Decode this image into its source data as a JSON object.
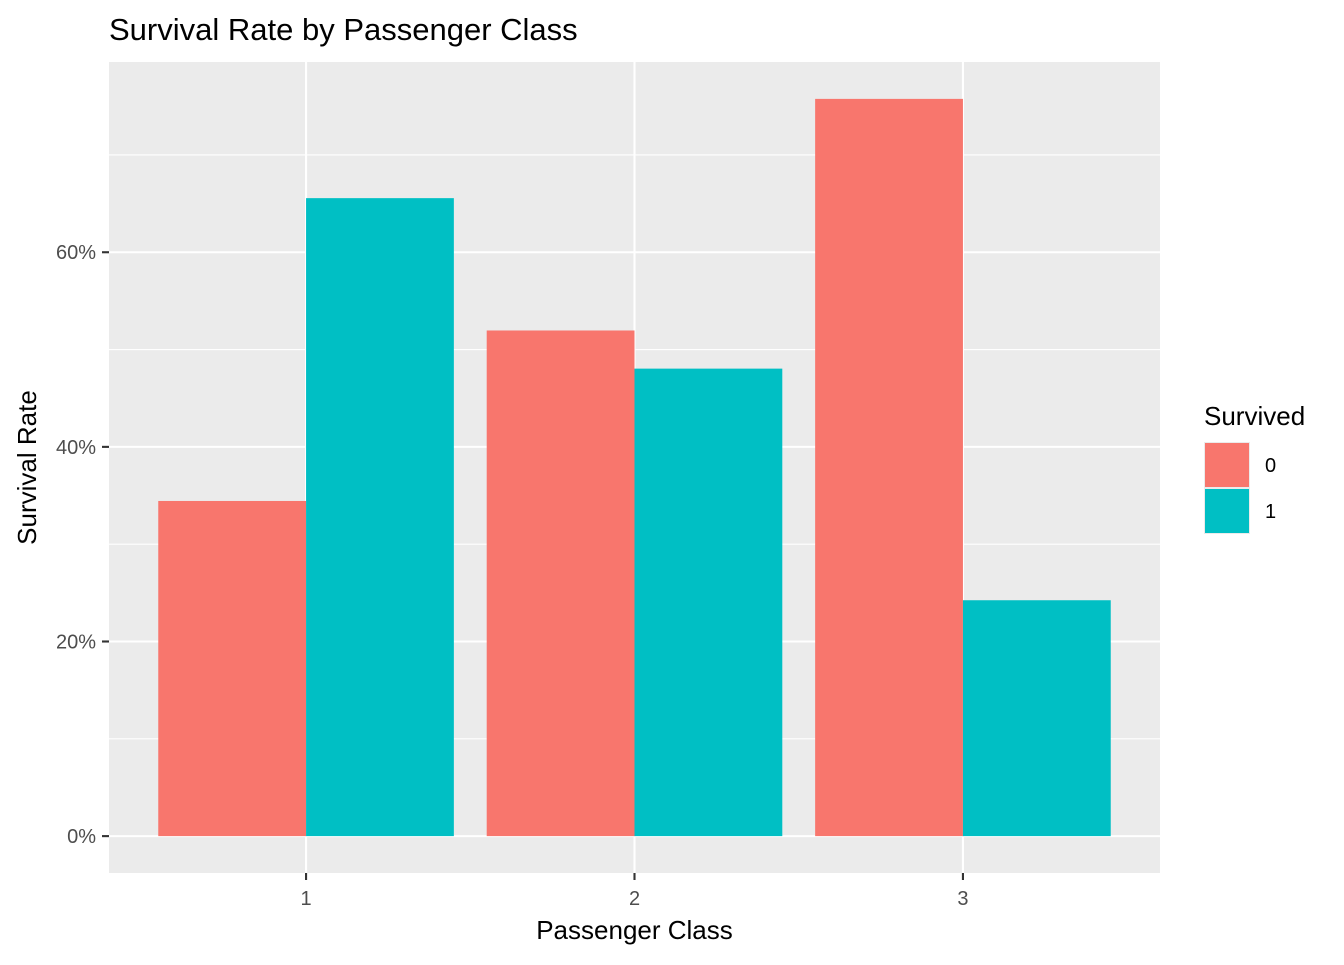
{
  "chart_data": {
    "type": "bar",
    "title": "Survival Rate by Passenger Class",
    "xlabel": "Passenger Class",
    "ylabel": "Survival Rate",
    "categories": [
      "1",
      "2",
      "3"
    ],
    "series": [
      {
        "name": "0",
        "color": "#F8766D",
        "values": [
          0.3444,
          0.5196,
          0.7576
        ]
      },
      {
        "name": "1",
        "color": "#00BFC4",
        "values": [
          0.6556,
          0.4804,
          0.2424
        ]
      }
    ],
    "ylim": [
      -0.0379,
      0.7955
    ],
    "y_ticks": [
      0,
      0.2,
      0.4,
      0.6
    ],
    "y_tick_labels": [
      "0%",
      "20%",
      "40%",
      "60%"
    ],
    "y_minor_ticks": [
      0.1,
      0.3,
      0.5,
      0.7
    ],
    "grid": true,
    "panel_background": "#EBEBEB",
    "grid_color": "#FFFFFF",
    "legend": {
      "title": "Survived",
      "placement": "right",
      "entries": [
        "0",
        "1"
      ]
    }
  }
}
